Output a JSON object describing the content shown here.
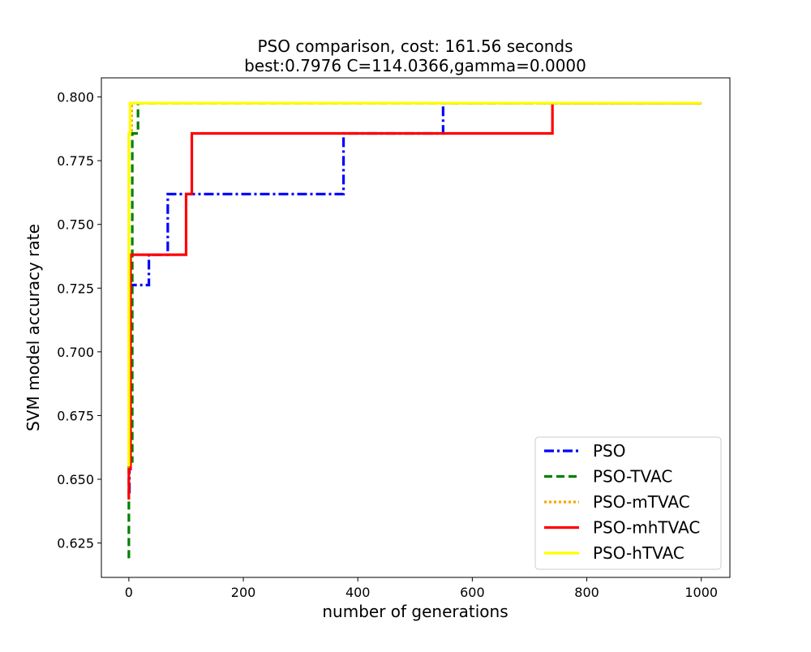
{
  "chart_data": {
    "type": "line",
    "title": "PSO comparison, cost: 161.56 seconds",
    "subtitle": "best:0.7976  C=114.0366,gamma=0.0000",
    "xlabel": "number of generations",
    "ylabel": "SVM model accuracy rate",
    "xlim": [
      -48,
      1050
    ],
    "ylim": [
      0.6115,
      0.8075
    ],
    "xticks": [
      0,
      200,
      400,
      600,
      800,
      1000
    ],
    "yticks": [
      0.625,
      0.65,
      0.675,
      0.7,
      0.725,
      0.75,
      0.775,
      0.8
    ],
    "x_tick_labels": [
      "0",
      "200",
      "400",
      "600",
      "800",
      "1000"
    ],
    "y_tick_labels": [
      "0.625",
      "0.650",
      "0.675",
      "0.700",
      "0.725",
      "0.750",
      "0.775",
      "0.800"
    ],
    "grid": false,
    "legend_position": "lower-right",
    "series": [
      {
        "name": "PSO",
        "color": "#0000ff",
        "style": "dashdot",
        "x": [
          0,
          1,
          1,
          35,
          35,
          68,
          68,
          375,
          375,
          549,
          549,
          1000
        ],
        "y": [
          0.645,
          0.645,
          0.7262,
          0.7262,
          0.7381,
          0.7381,
          0.7619,
          0.7619,
          0.7857,
          0.7857,
          0.7976,
          0.7976
        ]
      },
      {
        "name": "PSO-TVAC",
        "color": "#008000",
        "style": "dashed",
        "x": [
          0,
          0,
          6,
          6,
          16,
          16,
          1000
        ],
        "y": [
          0.619,
          0.657,
          0.657,
          0.7857,
          0.7857,
          0.7976,
          0.7976
        ]
      },
      {
        "name": "PSO-mTVAC",
        "color": "#ffa500",
        "style": "dotted",
        "x": [
          0,
          0,
          5,
          5,
          1000
        ],
        "y": [
          0.652,
          0.7857,
          0.7857,
          0.7976,
          0.7976
        ]
      },
      {
        "name": "PSO-mhTVAC",
        "color": "#ff0000",
        "style": "solid",
        "x": [
          0,
          0,
          3,
          3,
          100,
          100,
          110,
          110,
          740,
          740,
          1000
        ],
        "y": [
          0.642,
          0.654,
          0.654,
          0.7381,
          0.7381,
          0.7619,
          0.7619,
          0.7857,
          0.7857,
          0.7976,
          0.7976
        ]
      },
      {
        "name": "PSO-hTVAC",
        "color": "#ffff00",
        "style": "solid",
        "x": [
          0,
          0,
          2,
          2,
          1000
        ],
        "y": [
          0.655,
          0.7857,
          0.7857,
          0.7976,
          0.7976
        ]
      }
    ]
  }
}
